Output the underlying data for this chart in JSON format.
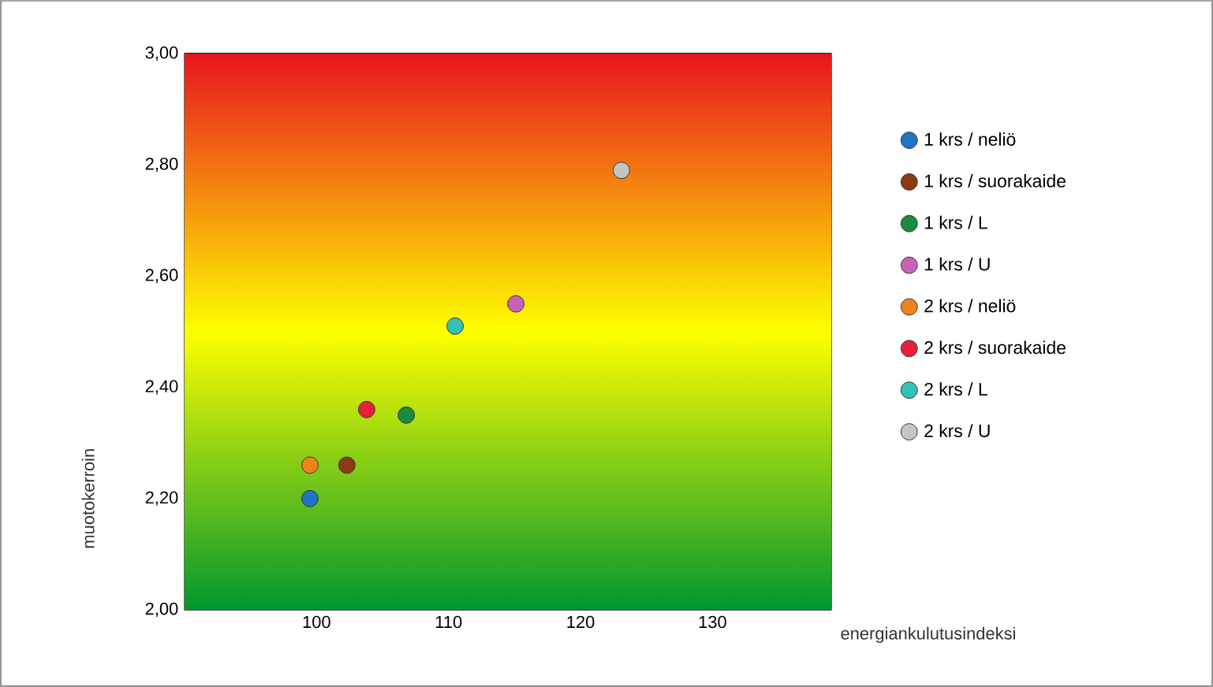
{
  "chart_data": {
    "type": "scatter",
    "xlabel": "energiankulutusindeksi",
    "ylabel": "muotokerroin",
    "xlim": [
      90,
      139
    ],
    "xticks": [
      100,
      110,
      120,
      130
    ],
    "ylim": [
      2.0,
      3.0
    ],
    "yticks": [
      {
        "value": 2.0,
        "label": "2,00"
      },
      {
        "value": 2.2,
        "label": "2,20"
      },
      {
        "value": 2.4,
        "label": "2,40"
      },
      {
        "value": 2.6,
        "label": "2,60"
      },
      {
        "value": 2.8,
        "label": "2,80"
      },
      {
        "value": 3.0,
        "label": "3,00"
      }
    ],
    "bands": [
      {
        "axis": "y",
        "from": 2.0,
        "to": 2.5,
        "color": "#00962e"
      },
      {
        "axis": "y",
        "from": 2.5,
        "to": 3.0,
        "color": "#e8141e"
      }
    ],
    "grid": "y",
    "legend": "right",
    "marker": "circle",
    "series": [
      {
        "name": "1 krs / neliö",
        "color": "#1f74c4",
        "x": [
          99.5
        ],
        "values": [
          2.2
        ]
      },
      {
        "name": "1 krs / suorakaide",
        "color": "#8b3a12",
        "x": [
          102.3
        ],
        "values": [
          2.26
        ]
      },
      {
        "name": "1 krs / L",
        "color": "#1a8a3e",
        "x": [
          106.8
        ],
        "values": [
          2.35
        ]
      },
      {
        "name": "1 krs / U",
        "color": "#c862b8",
        "x": [
          115.1
        ],
        "values": [
          2.55
        ]
      },
      {
        "name": "2 krs / neliö",
        "color": "#f0821e",
        "x": [
          99.5
        ],
        "values": [
          2.26
        ]
      },
      {
        "name": "2 krs / suorakaide",
        "color": "#e8203a",
        "x": [
          103.8
        ],
        "values": [
          2.36
        ]
      },
      {
        "name": "2 krs / L",
        "color": "#32c2b8",
        "x": [
          110.5
        ],
        "values": [
          2.51
        ]
      },
      {
        "name": "2 krs / U",
        "color": "#c4c4c4",
        "x": [
          123.1
        ],
        "values": [
          2.79
        ]
      }
    ]
  }
}
